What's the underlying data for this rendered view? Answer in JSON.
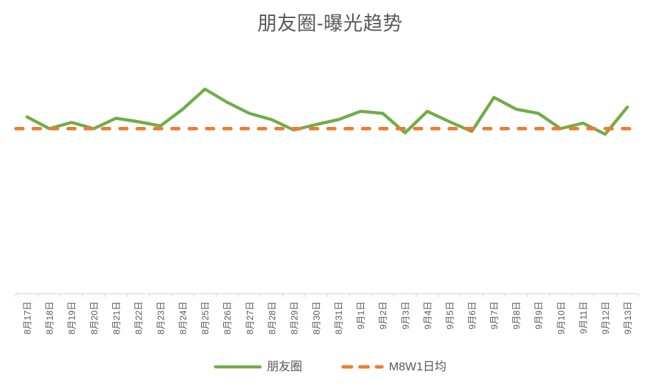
{
  "chart_data": {
    "type": "line",
    "title": "朋友圈-曝光趋势",
    "title_color": "#595959",
    "categories": [
      "8月17日",
      "8月18日",
      "8月19日",
      "8月20日",
      "8月21日",
      "8月22日",
      "8月23日",
      "8月24日",
      "8月25日",
      "8月26日",
      "8月27日",
      "8月28日",
      "8月29日",
      "8月30日",
      "8月31日",
      "9月1日",
      "9月2日",
      "9月3日",
      "9月4日",
      "9月5日",
      "9月6日",
      "9月7日",
      "9月8日",
      "9月9日",
      "9月10日",
      "9月11日",
      "9月12日",
      "9月13日"
    ],
    "series": [
      {
        "name": "朋友圈",
        "type": "line",
        "style": "solid",
        "color": "#70AD47",
        "values": [
          117,
          100,
          109,
          100,
          115,
          110,
          104,
          128,
          157,
          138,
          122,
          113,
          98,
          106,
          113,
          125,
          122,
          94,
          125,
          110,
          96,
          145,
          128,
          122,
          100,
          108,
          92,
          131
        ]
      },
      {
        "name": "M8W1日均",
        "type": "reference-line",
        "style": "dashed",
        "color": "#ED7D31",
        "value": 100
      }
    ],
    "units": "relative index (M8W1 daily average = 100), no y-axis shown",
    "y_axis_visible": false,
    "gridlines": false,
    "legend_position": "bottom",
    "x_labels_rotation_deg": 90,
    "axis_color": "#D9D9D9",
    "label_color": "#595959"
  }
}
